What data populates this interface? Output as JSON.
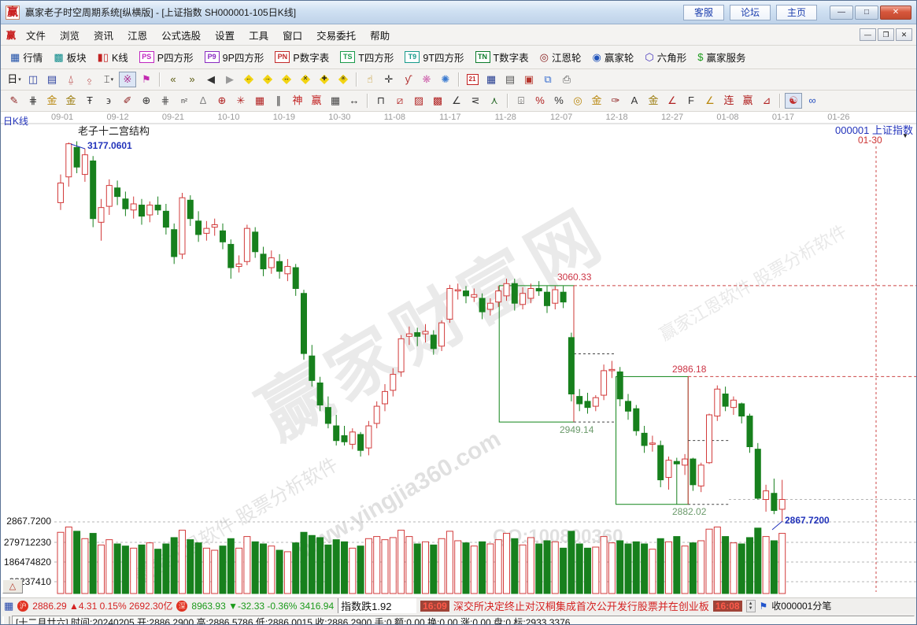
{
  "window": {
    "logo": "赢",
    "title": "赢家老子时空周期系统[纵横版] - [上证指数  SH000001-105日K线]",
    "quick_links": [
      "客服",
      "论坛",
      "主页"
    ],
    "controls": {
      "minimize": "—",
      "maximize": "□",
      "close": "✕"
    },
    "mdi_controls": {
      "minimize": "—",
      "restore": "❐",
      "close": "✕"
    }
  },
  "menu": {
    "items": [
      "文件",
      "浏览",
      "资讯",
      "江恩",
      "公式选股",
      "设置",
      "工具",
      "窗口",
      "交易委托",
      "帮助"
    ]
  },
  "toolbar_main": {
    "items": [
      {
        "icon": "▦",
        "color": "#2050a8",
        "label": "行情"
      },
      {
        "icon": "▩",
        "color": "#0c8b8b",
        "label": "板块"
      },
      {
        "icon": "▮▯",
        "color": "#c22222",
        "label": "K线"
      },
      {
        "chip": "PS",
        "color": "#c026c0",
        "label": "P四方形"
      },
      {
        "chip": "P9",
        "color": "#8a2ac0",
        "label": "9P四方形"
      },
      {
        "chip": "PN",
        "color": "#c22a2a",
        "label": "P数字表"
      },
      {
        "chip": "TS",
        "color": "#1a9a4a",
        "label": "T四方形"
      },
      {
        "chip": "T9",
        "color": "#159a8a",
        "label": "9T四方形"
      },
      {
        "chip": "TN",
        "color": "#0a7a2a",
        "label": "T数字表"
      },
      {
        "icon": "◎",
        "color": "#8b2222",
        "label": "江恩轮"
      },
      {
        "icon": "◉",
        "color": "#2255bb",
        "label": "赢家轮"
      },
      {
        "icon": "⬡",
        "color": "#4433bb",
        "label": "六角形"
      },
      {
        "icon": "$",
        "color": "#1a9a1a",
        "label": "赢家服务"
      }
    ]
  },
  "toolbar_quick": {
    "items": [
      {
        "g": "日",
        "c": "#111",
        "dd": 1,
        "n": "period-day"
      },
      {
        "g": "◫",
        "c": "#2a3f9f",
        "n": "grid-view"
      },
      {
        "g": "▤",
        "c": "#2a3f9f",
        "n": "list-view"
      },
      {
        "g": "⍙",
        "c": "#b03030",
        "n": "chart-3"
      },
      {
        "g": "⍚",
        "c": "#b03030",
        "n": "chart-9"
      },
      {
        "g": "⌶",
        "c": "#333333",
        "dd": 1,
        "n": "candle-style"
      },
      {
        "g": "※",
        "c": "#b03090",
        "pressed": 1,
        "n": "pattern-mode"
      },
      {
        "g": "⚑",
        "c": "#c22ab0",
        "n": "flag-marker"
      },
      {
        "sep": 1
      },
      {
        "g": "«",
        "c": "#5a5a12",
        "n": "first-bar"
      },
      {
        "g": "»",
        "c": "#5a5a12",
        "n": "last-bar"
      },
      {
        "g": "◀",
        "c": "#333333",
        "n": "prev-bar"
      },
      {
        "g": "▶",
        "c": "#999999",
        "n": "next-bar"
      },
      {
        "dia": "←",
        "n": "diamond-left"
      },
      {
        "dia": "→",
        "n": "diamond-right"
      },
      {
        "dia": "↔",
        "n": "diamond-lr"
      },
      {
        "dia": "✕",
        "n": "diamond-x"
      },
      {
        "dia": "✚",
        "n": "diamond-plus"
      },
      {
        "dia": "✳",
        "n": "diamond-star"
      },
      {
        "sep": 1
      },
      {
        "g": "☝",
        "c": "#b8860b",
        "n": "hand-tool"
      },
      {
        "g": "✛",
        "c": "#333333",
        "n": "crosshair-tool"
      },
      {
        "g": "ƴ",
        "c": "#b03030",
        "n": "stats-tool"
      },
      {
        "g": "❋",
        "c": "#d06ab0",
        "n": "net-pink"
      },
      {
        "g": "✺",
        "c": "#3a7ad0",
        "n": "net-blue"
      },
      {
        "sep": 1
      },
      {
        "chip": "21",
        "c": "#c22222",
        "n": "calendar"
      },
      {
        "g": "▦",
        "c": "#223a8f",
        "n": "calculator"
      },
      {
        "g": "▤",
        "c": "#555555",
        "n": "notes"
      },
      {
        "g": "▣",
        "c": "#b5342c",
        "n": "save"
      },
      {
        "g": "⧉",
        "c": "#3a6fd0",
        "n": "copy"
      },
      {
        "g": "⎙",
        "c": "#555555",
        "n": "print"
      }
    ]
  },
  "toolbar_draw": {
    "items": [
      {
        "g": "✎",
        "c": "#8b1a1a",
        "n": "pen"
      },
      {
        "g": "⋕",
        "c": "#333333",
        "n": "grid-lines"
      },
      {
        "g": "金",
        "c": "#b8860b",
        "n": "gold-grid-1"
      },
      {
        "g": "金",
        "c": "#9a7a0a",
        "n": "gold-grid-2"
      },
      {
        "g": "Ŧ",
        "c": "#333333",
        "n": "t-line"
      },
      {
        "g": "϶",
        "c": "#333333",
        "n": "spiral"
      },
      {
        "g": "✐",
        "c": "#8b1a1a",
        "n": "pen-2"
      },
      {
        "g": "⊕",
        "c": "#333333",
        "n": "circle-grid"
      },
      {
        "g": "⋕",
        "c": "#555555",
        "n": "grid-dense"
      },
      {
        "g": "n²",
        "c": "#333333",
        "small": 1,
        "n": "square-numbers"
      },
      {
        "g": "∆",
        "c": "#888888",
        "n": "angle-ghost"
      },
      {
        "g": "⊕",
        "c": "#b02020",
        "n": "gann-target"
      },
      {
        "g": "✳",
        "c": "#b02020",
        "n": "spider-web"
      },
      {
        "g": "▦",
        "c": "#b02020",
        "n": "web-square"
      },
      {
        "g": "∥",
        "c": "#333333",
        "n": "parallel"
      },
      {
        "g": "神",
        "c": "#c22222",
        "n": "shen-tool"
      },
      {
        "g": "赢",
        "c": "#c22222",
        "n": "ying-tool"
      },
      {
        "g": "▦",
        "c": "#444444",
        "n": "grid-123"
      },
      {
        "g": "↔",
        "c": "#333333",
        "n": "measure-h"
      },
      {
        "sep": 1
      },
      {
        "g": "⊓",
        "c": "#333333",
        "n": "gann-box"
      },
      {
        "g": "⧄",
        "c": "#b02020",
        "n": "fan-lines"
      },
      {
        "g": "▨",
        "c": "#b02020",
        "n": "shade-box"
      },
      {
        "g": "▩",
        "c": "#b02020",
        "n": "web-box"
      },
      {
        "g": "∠",
        "c": "#333333",
        "n": "angle"
      },
      {
        "g": "⋜",
        "c": "#333333",
        "n": "angle-le"
      },
      {
        "g": "⋏",
        "c": "#2a6a2a",
        "n": "wave"
      },
      {
        "sep": 1
      },
      {
        "g": "⌹",
        "c": "#333333",
        "n": "percent-ruler"
      },
      {
        "g": "%",
        "c": "#b02020",
        "n": "percent-red"
      },
      {
        "g": "%",
        "c": "#333333",
        "n": "percent"
      },
      {
        "g": "◎",
        "c": "#b8860b",
        "n": "gold-circle"
      },
      {
        "g": "金",
        "c": "#b8860b",
        "n": "gold-level"
      },
      {
        "g": "✑",
        "c": "#8b1a1a",
        "n": "pen-3"
      },
      {
        "g": "A",
        "c": "#333333",
        "n": "letter-a"
      },
      {
        "g": "金",
        "c": "#9a7a0a",
        "n": "gold-underline"
      },
      {
        "g": "∠",
        "c": "#b02020",
        "n": "angle-j"
      },
      {
        "g": "F",
        "c": "#333333",
        "n": "angle-f"
      },
      {
        "g": "∠",
        "c": "#b8860b",
        "n": "angle-gold"
      },
      {
        "g": "连",
        "c": "#b02020",
        "n": "lian-tool"
      },
      {
        "g": "赢",
        "c": "#b02020",
        "n": "ying-tool-2"
      },
      {
        "g": "⊿",
        "c": "#b02020",
        "n": "slope"
      },
      {
        "sep": 1
      },
      {
        "g": "☯",
        "c": "#c03030",
        "pressed": 1,
        "n": "yinyang"
      },
      {
        "g": "∞",
        "c": "#2a52c0",
        "n": "infinity"
      }
    ]
  },
  "chart": {
    "period_label": "日K线",
    "structure_label": "老子十二宫结构",
    "peak_label": "3177.0601",
    "box1_top_label": "3060.33",
    "box1_bottom_label": "2949.14",
    "box2_top_label": "2986.18",
    "box2_bottom_label": "2882.02",
    "last_low_label": "2867.7200",
    "stock_label": "000001 上证指数",
    "stock_dropdown_icon": "▼",
    "projection_label": "01-30",
    "price_axis_label": "2867.7200",
    "volume_axis_labels": [
      "279712230",
      "186474820",
      "93237410"
    ],
    "volume_toggle_label": "△",
    "watermarks": {
      "brand": "赢家财富网",
      "url": "www.yingjia360.com",
      "gann": "赢家江恩软件  股票分析软件",
      "qq": "QQ:100800360"
    }
  },
  "chart_data": {
    "type": "candlestick",
    "symbol": "SH000001",
    "name": "上证指数",
    "period": "105日K线",
    "legend_position": "none",
    "grid": "dashed-horizontal",
    "date_ticks": [
      "09-01",
      "09-12",
      "09-21",
      "10-10",
      "10-19",
      "10-30",
      "11-08",
      "11-17",
      "11-28",
      "12-07",
      "12-18",
      "12-27",
      "01-08",
      "01-17",
      "01-26"
    ],
    "projection_date": "01-30",
    "price_marks": {
      "peak": 3177.0601,
      "last_low": 2867.72,
      "last_close_level": 2886.0
    },
    "volume_axis": [
      279712230,
      186474820,
      93237410
    ],
    "gann_boxes": [
      {
        "from": 54.1,
        "to": 63.3,
        "top": 3060.33,
        "bottom": 2949.14
      },
      {
        "from": 68.5,
        "to": 77.4,
        "top": 2986.18,
        "bottom": 2882.02
      }
    ],
    "candles": [
      [
        3128,
        3151,
        3122,
        3144
      ],
      [
        3149,
        3177.06,
        3141,
        3176
      ],
      [
        3173,
        3178,
        3152,
        3157
      ],
      [
        3151,
        3172,
        3145,
        3167
      ],
      [
        3162,
        3166,
        3108,
        3115
      ],
      [
        3112,
        3131,
        3097,
        3124
      ],
      [
        3125,
        3147,
        3118,
        3142
      ],
      [
        3140,
        3146,
        3126,
        3133
      ],
      [
        3131,
        3137,
        3117,
        3123
      ],
      [
        3122,
        3133,
        3115,
        3127
      ],
      [
        3126,
        3131,
        3110,
        3117
      ],
      [
        3118,
        3129,
        3112,
        3126
      ],
      [
        3126,
        3133,
        3118,
        3122
      ],
      [
        3121,
        3127,
        3102,
        3108
      ],
      [
        3106,
        3111,
        3078,
        3084
      ],
      [
        3086,
        3136,
        3082,
        3132
      ],
      [
        3130,
        3134,
        3109,
        3115
      ],
      [
        3113,
        3121,
        3096,
        3102
      ],
      [
        3103,
        3113,
        3097,
        3107
      ],
      [
        3108,
        3115,
        3101,
        3110
      ],
      [
        3105,
        3111,
        3090,
        3096
      ],
      [
        3094,
        3098,
        3066,
        3075
      ],
      [
        3076,
        3085,
        3071,
        3078
      ],
      [
        3080,
        3110,
        3077,
        3107
      ],
      [
        3104,
        3108,
        3083,
        3088
      ],
      [
        3086,
        3092,
        3068,
        3074
      ],
      [
        3075,
        3089,
        3070,
        3083
      ],
      [
        3080,
        3086,
        3066,
        3072
      ],
      [
        3070,
        3082,
        3064,
        3076
      ],
      [
        3075,
        3078,
        3052,
        3058
      ],
      [
        3054,
        3057,
        3000,
        3005
      ],
      [
        3003,
        3012,
        2978,
        2983
      ],
      [
        2981,
        2986,
        2958,
        2963
      ],
      [
        2961,
        2970,
        2944,
        2948
      ],
      [
        2946,
        2955,
        2930,
        2934
      ],
      [
        2938,
        2946,
        2930,
        2933
      ],
      [
        2931,
        2944,
        2927,
        2941
      ],
      [
        2939,
        2941,
        2921,
        2926
      ],
      [
        2928,
        2950,
        2922,
        2946
      ],
      [
        2948,
        2966,
        2944,
        2962
      ],
      [
        2964,
        2980,
        2958,
        2974
      ],
      [
        2975,
        2993,
        2970,
        2988
      ],
      [
        2990,
        3020,
        2986,
        3017
      ],
      [
        3019,
        3027,
        3012,
        3021
      ],
      [
        3022,
        3026,
        3011,
        3019
      ],
      [
        3021,
        3029,
        3014,
        3023
      ],
      [
        3020,
        3024,
        3004,
        3009
      ],
      [
        3011,
        3032,
        3007,
        3030
      ],
      [
        3033,
        3061,
        3030,
        3058
      ],
      [
        3056,
        3062,
        3049,
        3057
      ],
      [
        3056,
        3060,
        3046,
        3052
      ],
      [
        3051,
        3058,
        3047,
        3053
      ],
      [
        3050,
        3054,
        3033,
        3039
      ],
      [
        3041,
        3050,
        3036,
        3046
      ],
      [
        3047,
        3060,
        3043,
        3056
      ],
      [
        3052,
        3066,
        3048,
        3062
      ],
      [
        3062,
        3066,
        3040,
        3046
      ],
      [
        3045,
        3059,
        3041,
        3054
      ],
      [
        3050,
        3062,
        3046,
        3058
      ],
      [
        3058,
        3064,
        3052,
        3056
      ],
      [
        3055,
        3060,
        3038,
        3044
      ],
      [
        3046,
        3060,
        3041,
        3057
      ],
      [
        3055,
        3060,
        3042,
        3047
      ],
      [
        3018,
        3022,
        2966,
        2972
      ],
      [
        2970,
        2976,
        2958,
        2964
      ],
      [
        2966,
        2973,
        2956,
        2961
      ],
      [
        2962,
        2971,
        2958,
        2969
      ],
      [
        2971,
        2996,
        2967,
        2991
      ],
      [
        2991,
        2999,
        2985,
        2992
      ],
      [
        2990,
        2994,
        2962,
        2968
      ],
      [
        2966,
        2972,
        2951,
        2958
      ],
      [
        2960,
        2963,
        2938,
        2942
      ],
      [
        2940,
        2946,
        2924,
        2930
      ],
      [
        2931,
        2938,
        2925,
        2932
      ],
      [
        2930,
        2934,
        2896,
        2902
      ],
      [
        2904,
        2921,
        2894,
        2918
      ],
      [
        2917,
        2920,
        2882.02,
        2915
      ],
      [
        2914,
        2923,
        2906,
        2919
      ],
      [
        2919,
        2920,
        2893,
        2898
      ],
      [
        2897,
        2916,
        2892,
        2914
      ],
      [
        2916,
        2956,
        2915,
        2955
      ],
      [
        2954,
        2979,
        2950,
        2976
      ],
      [
        2972,
        2978,
        2958,
        2962
      ],
      [
        2961,
        2970,
        2955,
        2967
      ],
      [
        2964,
        2965,
        2948,
        2954
      ],
      [
        2954,
        2956,
        2924,
        2929
      ],
      [
        2927,
        2932,
        2886,
        2887
      ],
      [
        2886,
        2898,
        2876,
        2893
      ],
      [
        2891,
        2903,
        2874,
        2877
      ],
      [
        2878,
        2902,
        2867.72,
        2886
      ]
    ],
    "volumes_m": [
      290,
      315,
      295,
      260,
      285,
      230,
      255,
      235,
      225,
      215,
      230,
      240,
      210,
      235,
      265,
      300,
      255,
      240,
      215,
      205,
      225,
      260,
      215,
      270,
      245,
      235,
      225,
      205,
      198,
      240,
      290,
      275,
      265,
      230,
      255,
      245,
      215,
      225,
      260,
      270,
      255,
      265,
      300,
      270,
      235,
      245,
      230,
      260,
      295,
      250,
      240,
      225,
      245,
      235,
      255,
      285,
      260,
      230,
      265,
      235,
      250,
      245,
      215,
      295,
      235,
      215,
      220,
      270,
      240,
      250,
      235,
      245,
      235,
      210,
      260,
      245,
      270,
      225,
      240,
      250,
      305,
      315,
      270,
      240,
      235,
      265,
      310,
      270,
      250,
      285
    ]
  },
  "statusbar": {
    "market_icon": "▦",
    "sh": {
      "badge": "沪",
      "value": "2886.29",
      "arrow": "▲",
      "change": "4.31",
      "pct": "0.15%",
      "amount": "2692.30亿"
    },
    "sz": {
      "badge": "深",
      "value": "8963.93",
      "arrow": "▼",
      "change": "-32.33",
      "pct": "-0.36%",
      "amount": "3416.94"
    },
    "ticker": "指数跌1.92",
    "time_1": "16:09",
    "news": "深交所决定终止对汉桐集成首次公开发行股票并在创业板",
    "time_2": "16:08",
    "spinner_up": "▲",
    "spinner_down": "▼",
    "flag_icon": "⚑",
    "receive_label": "收000001分笔"
  },
  "infobar": {
    "text": "[十二月廿六] 时间:20240205 开:2886.2900 高:2886.5786 低:2886.0015 收:2886.2900 手:0 额:0.00 换:0.00 涨:0.00 盘:0 标:2933.3376"
  }
}
